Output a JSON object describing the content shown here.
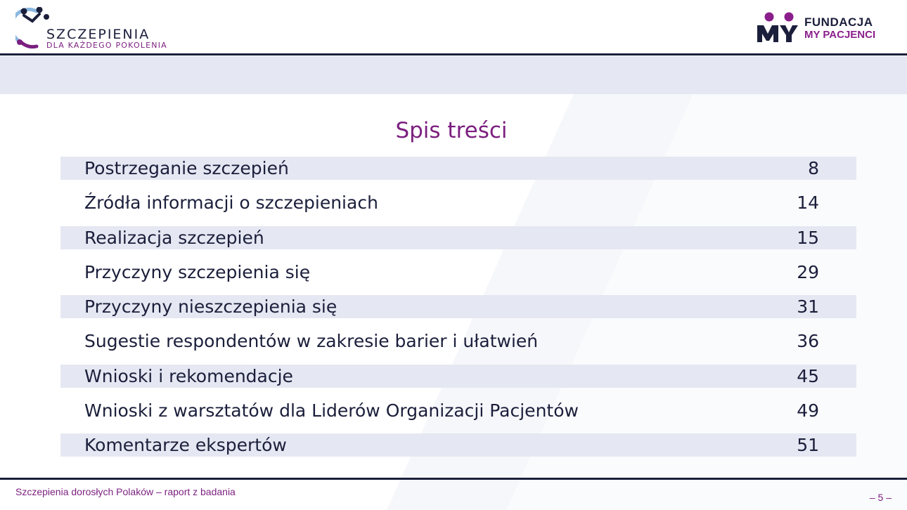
{
  "header": {
    "left_logo": {
      "brand": "SZCZEPIENIA",
      "tagline": "DLA KAŻDEGO POKOLENIA"
    },
    "right_logo": {
      "line1": "FUNDACJA",
      "line2": "MY PACJENCI",
      "mark": "MY"
    }
  },
  "toc": {
    "title": "Spis treści",
    "items": [
      {
        "label": "Postrzeganie szczepień",
        "page": "8"
      },
      {
        "label": "Źródła informacji o szczepieniach",
        "page": "14"
      },
      {
        "label": "Realizacja szczepień",
        "page": "15"
      },
      {
        "label": "Przyczyny szczepienia się",
        "page": "29"
      },
      {
        "label": "Przyczyny nieszczepienia się",
        "page": "31"
      },
      {
        "label": "Sugestie respondentów w zakresie barier i ułatwień",
        "page": "36"
      },
      {
        "label": "Wnioski i rekomendacje",
        "page": "45"
      },
      {
        "label": "Wnioski z warsztatów dla Liderów Organizacji Pacjentów",
        "page": "49"
      },
      {
        "label": "Komentarze ekspertów",
        "page": "51"
      }
    ]
  },
  "footer": {
    "report_title": "Szczepienia dorosłych Polaków – raport z badania",
    "page_number": "– 5 –"
  },
  "colors": {
    "navy": "#1b1f3b",
    "purple": "#7b1f7f",
    "band": "#e5e8f2"
  }
}
